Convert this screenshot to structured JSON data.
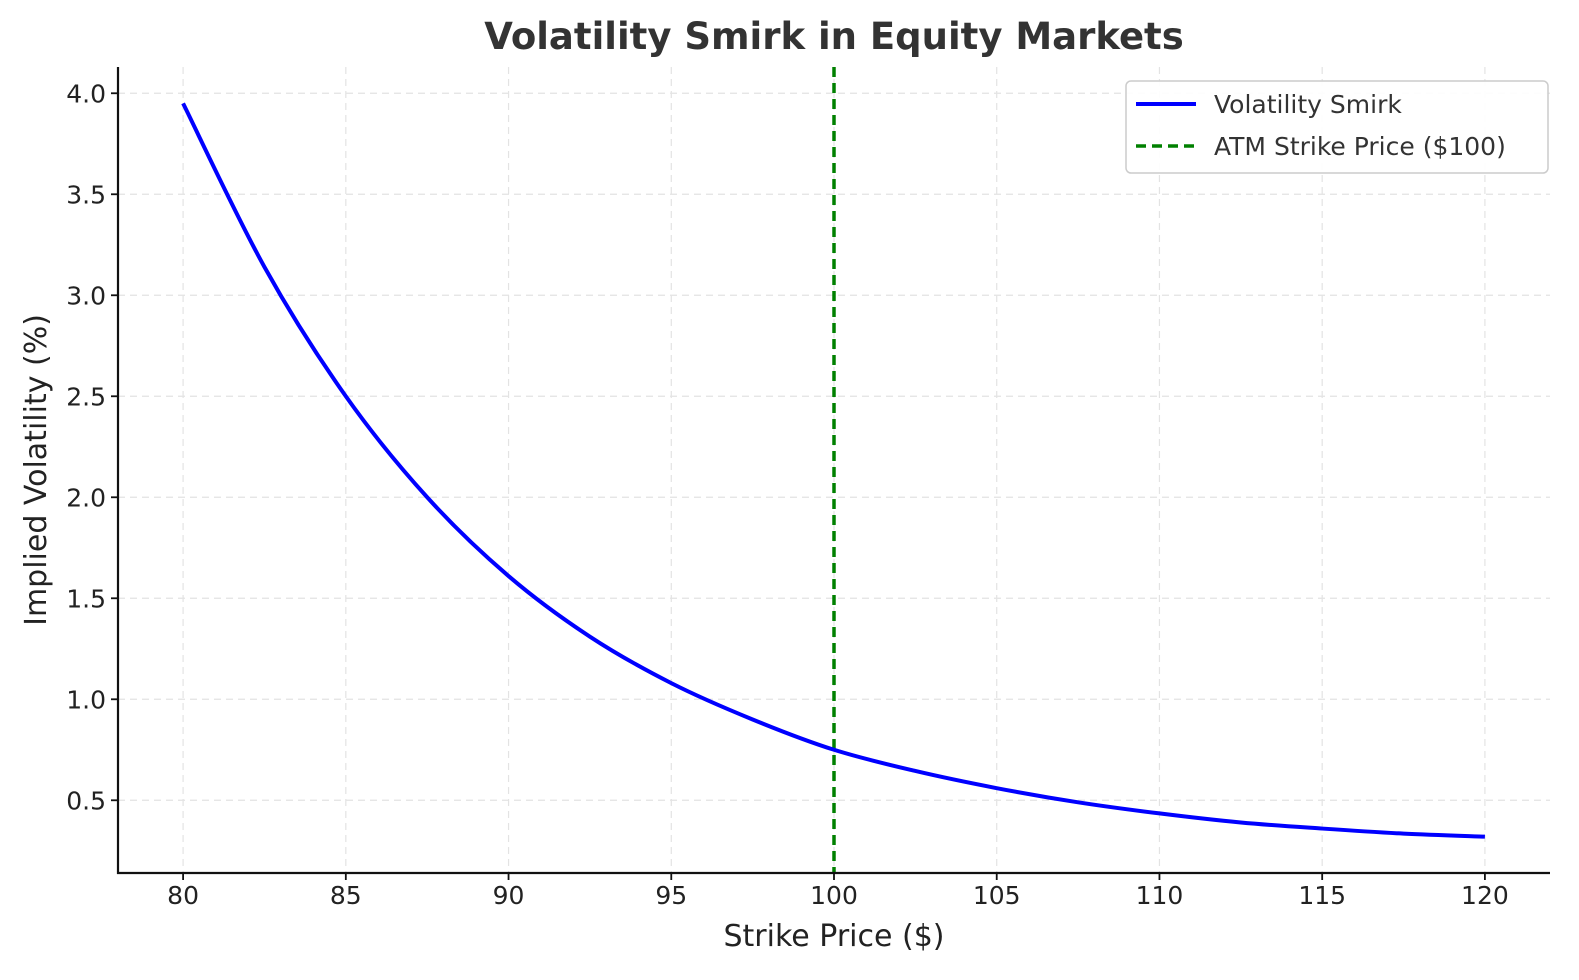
{
  "chart_data": {
    "type": "line",
    "title": "Volatility Smirk in Equity Markets",
    "xlabel": "Strike Price ($)",
    "ylabel": "Implied Volatility (%)",
    "xlim": [
      78,
      122
    ],
    "ylim": [
      0.14,
      4.13
    ],
    "xticks": [
      80,
      85,
      90,
      95,
      100,
      105,
      110,
      115,
      120
    ],
    "xtick_labels": [
      "80",
      "85",
      "90",
      "95",
      "100",
      "105",
      "110",
      "115",
      "120"
    ],
    "yticks": [
      0.5,
      1.0,
      1.5,
      2.0,
      2.5,
      3.0,
      3.5,
      4.0
    ],
    "ytick_labels": [
      "0.5",
      "1.0",
      "1.5",
      "2.0",
      "2.5",
      "3.0",
      "3.5",
      "4.0"
    ],
    "grid": true,
    "legend_position": "top-right",
    "series": [
      {
        "name": "Volatility Smirk",
        "style": "solid",
        "color": "#0000ff",
        "x": [
          80,
          82.5,
          85,
          87.5,
          90,
          92.5,
          95,
          97.5,
          100,
          102.5,
          105,
          107.5,
          110,
          112.5,
          115,
          117.5,
          120
        ],
        "values": [
          3.95,
          3.14,
          2.5,
          2.0,
          1.61,
          1.31,
          1.08,
          0.9,
          0.75,
          0.645,
          0.56,
          0.49,
          0.435,
          0.39,
          0.36,
          0.335,
          0.32
        ]
      }
    ],
    "reference_lines": [
      {
        "name": "ATM Strike Price ($100)",
        "orientation": "vertical",
        "x": 100,
        "style": "dashed",
        "color": "#008000"
      }
    ]
  }
}
